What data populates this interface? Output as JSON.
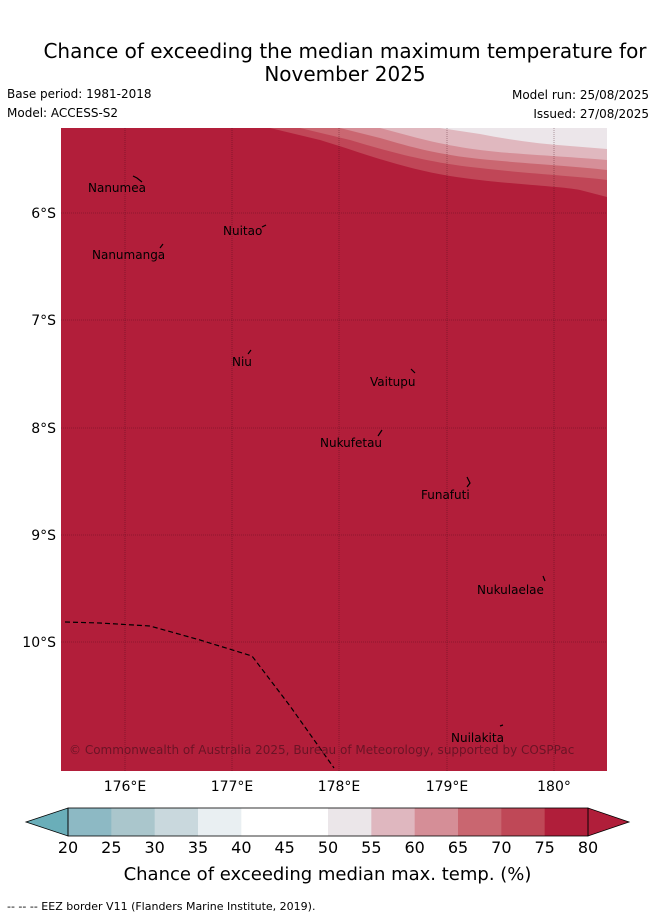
{
  "title_line1": "Chance of exceeding the median maximum temperature for",
  "title_line2": "November 2025",
  "base_period": "Base period: 1981-2018",
  "model": "Model: ACCESS-S2",
  "model_run": "Model run: 25/08/2025",
  "issued": "Issued: 27/08/2025",
  "copyright": "© Commonwealth of Australia 2025, Bureau of Meteorology, supported by COSPPac",
  "lat_ticks": [
    "6°S",
    "7°S",
    "8°S",
    "9°S",
    "10°S"
  ],
  "lon_ticks": [
    "176°E",
    "177°E",
    "178°E",
    "179°E",
    "180°"
  ],
  "places": [
    {
      "name": "Nanumea"
    },
    {
      "name": "Nuitao"
    },
    {
      "name": "Nanumanga"
    },
    {
      "name": "Niu"
    },
    {
      "name": "Vaitupu"
    },
    {
      "name": "Nukufetau"
    },
    {
      "name": "Funafuti"
    },
    {
      "name": "Nukulaelae"
    },
    {
      "name": "Nuilakita"
    }
  ],
  "colorbar": {
    "labels": [
      "20",
      "25",
      "30",
      "35",
      "40",
      "45",
      "50",
      "55",
      "60",
      "65",
      "70",
      "75",
      "80"
    ],
    "colors": [
      "#6aaeb9",
      "#8db9c4",
      "#aac6cc",
      "#c9d8dd",
      "#e9eff2",
      "#ffffff",
      "#ffffff",
      "#ebe6e9",
      "#dfb7bf",
      "#d58e97",
      "#c96670",
      "#bf4857",
      "#b01e3a"
    ],
    "title": "Chance of exceeding median max. temp. (%)"
  },
  "map_colors": {
    "main": "#b21e3a",
    "band_75": "#c04657",
    "band_70": "#ca6771",
    "band_65": "#d68f98",
    "band_60": "#e0b8bf",
    "band_55": "#ece6ea"
  },
  "footer": "--  --  -- EEZ border V11 (Flanders Marine Institute, 2019)."
}
